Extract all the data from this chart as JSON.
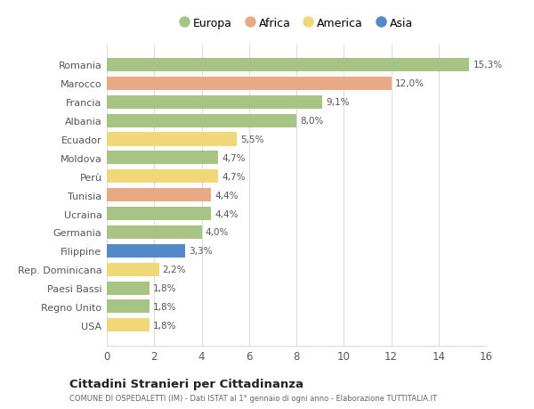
{
  "countries": [
    "Romania",
    "Marocco",
    "Francia",
    "Albania",
    "Ecuador",
    "Moldova",
    "Perù",
    "Tunisia",
    "Ucraina",
    "Germania",
    "Filippine",
    "Rep. Dominicana",
    "Paesi Bassi",
    "Regno Unito",
    "USA"
  ],
  "values": [
    15.3,
    12.0,
    9.1,
    8.0,
    5.5,
    4.7,
    4.7,
    4.4,
    4.4,
    4.0,
    3.3,
    2.2,
    1.8,
    1.8,
    1.8
  ],
  "labels": [
    "15,3%",
    "12,0%",
    "9,1%",
    "8,0%",
    "5,5%",
    "4,7%",
    "4,7%",
    "4,4%",
    "4,4%",
    "4,0%",
    "3,3%",
    "2,2%",
    "1,8%",
    "1,8%",
    "1,8%"
  ],
  "continents": [
    "Europa",
    "Africa",
    "Europa",
    "Europa",
    "America",
    "Europa",
    "America",
    "Africa",
    "Europa",
    "Europa",
    "Asia",
    "America",
    "Europa",
    "Europa",
    "America"
  ],
  "colors": {
    "Europa": "#a8c484",
    "Africa": "#e8aa84",
    "America": "#f0d878",
    "Asia": "#5588c8"
  },
  "legend_order": [
    "Europa",
    "Africa",
    "America",
    "Asia"
  ],
  "title": "Cittadini Stranieri per Cittadinanza",
  "subtitle": "COMUNE DI OSPEDALETTI (IM) - Dati ISTAT al 1° gennaio di ogni anno - Elaborazione TUTTITALIA.IT",
  "xlim": [
    0,
    16
  ],
  "xticks": [
    0,
    2,
    4,
    6,
    8,
    10,
    12,
    14,
    16
  ],
  "bg_color": "#ffffff",
  "grid_color": "#dddddd",
  "bar_height": 0.72
}
